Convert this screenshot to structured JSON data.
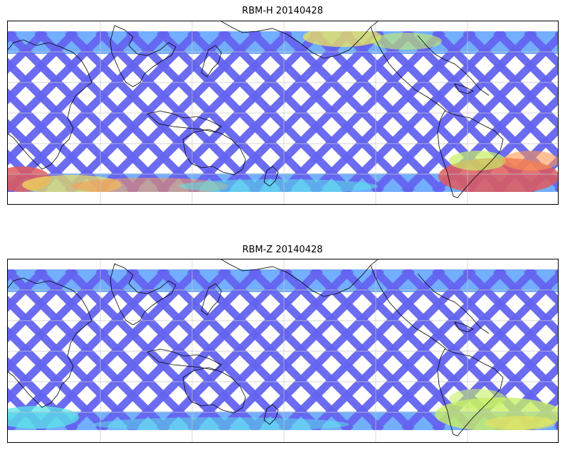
{
  "figure": {
    "panels": [
      {
        "title": "RBM-H 20140428",
        "variable": "RBM-H",
        "date": "20140428",
        "colormap": "jet (semi-transparent)",
        "grid": true,
        "warm_regions": [
          "southern high latitudes (Southern Ocean)",
          "North Pacific / Bering region"
        ]
      },
      {
        "title": "RBM-Z 20140428",
        "variable": "RBM-Z",
        "date": "20140428",
        "colormap": "jet (semi-transparent)",
        "grid": true,
        "warm_regions": [
          "south Atlantic / southern high latitudes (weaker)"
        ]
      }
    ],
    "colors": {
      "swath_base": "#6464f0",
      "swath_light": "#5aa0ff",
      "cyan": "#5ae6e6",
      "yellow_green": "#c8f064",
      "yellow": "#f0e65a",
      "orange": "#ff9650",
      "red": "#e05a5a",
      "coast": "#000000",
      "grid": "#c8c8c8"
    }
  }
}
